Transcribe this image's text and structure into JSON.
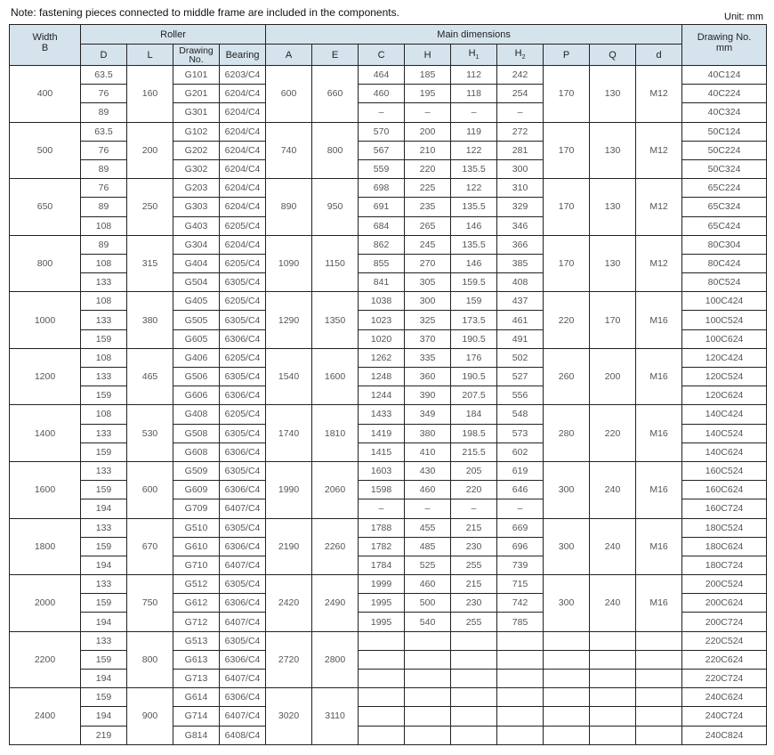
{
  "note": "Note: fastening pieces connected to middle frame are included in the components.",
  "unit": "Unit: mm",
  "header": {
    "width": "Width",
    "width_sub": "B",
    "roller": "Roller",
    "main_dimensions": "Main dimensions",
    "drawing_no": "Drawing No.",
    "drawing_no_sub": "mm",
    "D": "D",
    "L": "L",
    "drawing": "Drawing No.",
    "bearing": "Bearing",
    "A": "A",
    "E": "E",
    "C": "C",
    "H": "H",
    "H1": "H",
    "H1_sub": "1",
    "H2": "H",
    "H2_sub": "2",
    "P": "P",
    "Q": "Q",
    "d": "d"
  },
  "header_bg": "#d5e3ec",
  "groups": [
    {
      "width": "400",
      "L": "160",
      "A": "600",
      "E": "660",
      "P": "170",
      "Q": "130",
      "d": "M12",
      "rows": [
        {
          "D": "63.5",
          "drawing": "G101",
          "bearing": "6203/C4",
          "C": "464",
          "H": "185",
          "H1": "112",
          "H2": "242",
          "no": "40C124"
        },
        {
          "D": "76",
          "drawing": "G201",
          "bearing": "6204/C4",
          "C": "460",
          "H": "195",
          "H1": "118",
          "H2": "254",
          "no": "40C224"
        },
        {
          "D": "89",
          "drawing": "G301",
          "bearing": "6204/C4",
          "C": "–",
          "H": "–",
          "H1": "–",
          "H2": "–",
          "no": "40C324"
        }
      ]
    },
    {
      "width": "500",
      "L": "200",
      "A": "740",
      "E": "800",
      "P": "170",
      "Q": "130",
      "d": "M12",
      "rows": [
        {
          "D": "63.5",
          "drawing": "G102",
          "bearing": "6204/C4",
          "C": "570",
          "H": "200",
          "H1": "119",
          "H2": "272",
          "no": "50C124"
        },
        {
          "D": "76",
          "drawing": "G202",
          "bearing": "6204/C4",
          "C": "567",
          "H": "210",
          "H1": "122",
          "H2": "281",
          "no": "50C224"
        },
        {
          "D": "89",
          "drawing": "G302",
          "bearing": "6204/C4",
          "C": "559",
          "H": "220",
          "H1": "135.5",
          "H2": "300",
          "no": "50C324"
        }
      ]
    },
    {
      "width": "650",
      "L": "250",
      "A": "890",
      "E": "950",
      "P": "170",
      "Q": "130",
      "d": "M12",
      "rows": [
        {
          "D": "76",
          "drawing": "G203",
          "bearing": "6204/C4",
          "C": "698",
          "H": "225",
          "H1": "122",
          "H2": "310",
          "no": "65C224"
        },
        {
          "D": "89",
          "drawing": "G303",
          "bearing": "6204/C4",
          "C": "691",
          "H": "235",
          "H1": "135.5",
          "H2": "329",
          "no": "65C324"
        },
        {
          "D": "108",
          "drawing": "G403",
          "bearing": "6205/C4",
          "C": "684",
          "H": "265",
          "H1": "146",
          "H2": "346",
          "no": "65C424"
        }
      ]
    },
    {
      "width": "800",
      "L": "315",
      "A": "1090",
      "E": "1150",
      "P": "170",
      "Q": "130",
      "d": "M12",
      "rows": [
        {
          "D": "89",
          "drawing": "G304",
          "bearing": "6204/C4",
          "C": "862",
          "H": "245",
          "H1": "135.5",
          "H2": "366",
          "no": "80C304"
        },
        {
          "D": "108",
          "drawing": "G404",
          "bearing": "6205/C4",
          "C": "855",
          "H": "270",
          "H1": "146",
          "H2": "385",
          "no": "80C424"
        },
        {
          "D": "133",
          "drawing": "G504",
          "bearing": "6305/C4",
          "C": "841",
          "H": "305",
          "H1": "159.5",
          "H2": "408",
          "no": "80C524"
        }
      ]
    },
    {
      "width": "1000",
      "L": "380",
      "A": "1290",
      "E": "1350",
      "P": "220",
      "Q": "170",
      "d": "M16",
      "rows": [
        {
          "D": "108",
          "drawing": "G405",
          "bearing": "6205/C4",
          "C": "1038",
          "H": "300",
          "H1": "159",
          "H2": "437",
          "no": "100C424"
        },
        {
          "D": "133",
          "drawing": "G505",
          "bearing": "6305/C4",
          "C": "1023",
          "H": "325",
          "H1": "173.5",
          "H2": "461",
          "no": "100C524"
        },
        {
          "D": "159",
          "drawing": "G605",
          "bearing": "6306/C4",
          "C": "1020",
          "H": "370",
          "H1": "190.5",
          "H2": "491",
          "no": "100C624"
        }
      ]
    },
    {
      "width": "1200",
      "L": "465",
      "A": "1540",
      "E": "1600",
      "P": "260",
      "Q": "200",
      "d": "M16",
      "rows": [
        {
          "D": "108",
          "drawing": "G406",
          "bearing": "6205/C4",
          "C": "1262",
          "H": "335",
          "H1": "176",
          "H2": "502",
          "no": "120C424"
        },
        {
          "D": "133",
          "drawing": "G506",
          "bearing": "6305/C4",
          "C": "1248",
          "H": "360",
          "H1": "190.5",
          "H2": "527",
          "no": "120C524"
        },
        {
          "D": "159",
          "drawing": "G606",
          "bearing": "6306/C4",
          "C": "1244",
          "H": "390",
          "H1": "207.5",
          "H2": "556",
          "no": "120C624"
        }
      ]
    },
    {
      "width": "1400",
      "L": "530",
      "A": "1740",
      "E": "1810",
      "P": "280",
      "Q": "220",
      "d": "M16",
      "rows": [
        {
          "D": "108",
          "drawing": "G408",
          "bearing": "6205/C4",
          "C": "1433",
          "H": "349",
          "H1": "184",
          "H2": "548",
          "no": "140C424"
        },
        {
          "D": "133",
          "drawing": "G508",
          "bearing": "6305/C4",
          "C": "1419",
          "H": "380",
          "H1": "198.5",
          "H2": "573",
          "no": "140C524"
        },
        {
          "D": "159",
          "drawing": "G608",
          "bearing": "6306/C4",
          "C": "1415",
          "H": "410",
          "H1": "215.5",
          "H2": "602",
          "no": "140C624"
        }
      ]
    },
    {
      "width": "1600",
      "L": "600",
      "A": "1990",
      "E": "2060",
      "P": "300",
      "Q": "240",
      "d": "M16",
      "rows": [
        {
          "D": "133",
          "drawing": "G509",
          "bearing": "6305/C4",
          "C": "1603",
          "H": "430",
          "H1": "205",
          "H2": "619",
          "no": "160C524"
        },
        {
          "D": "159",
          "drawing": "G609",
          "bearing": "6306/C4",
          "C": "1598",
          "H": "460",
          "H1": "220",
          "H2": "646",
          "no": "160C624"
        },
        {
          "D": "194",
          "drawing": "G709",
          "bearing": "6407/C4",
          "C": "–",
          "H": "–",
          "H1": "–",
          "H2": "–",
          "no": "160C724"
        }
      ]
    },
    {
      "width": "1800",
      "L": "670",
      "A": "2190",
      "E": "2260",
      "P": "300",
      "Q": "240",
      "d": "M16",
      "rows": [
        {
          "D": "133",
          "drawing": "G510",
          "bearing": "6305/C4",
          "C": "1788",
          "H": "455",
          "H1": "215",
          "H2": "669",
          "no": "180C524"
        },
        {
          "D": "159",
          "drawing": "G610",
          "bearing": "6306/C4",
          "C": "1782",
          "H": "485",
          "H1": "230",
          "H2": "696",
          "no": "180C624"
        },
        {
          "D": "194",
          "drawing": "G710",
          "bearing": "6407/C4",
          "C": "1784",
          "H": "525",
          "H1": "255",
          "H2": "739",
          "no": "180C724"
        }
      ]
    },
    {
      "width": "2000",
      "L": "750",
      "A": "2420",
      "E": "2490",
      "P": "300",
      "Q": "240",
      "d": "M16",
      "rows": [
        {
          "D": "133",
          "drawing": "G512",
          "bearing": "6305/C4",
          "C": "1999",
          "H": "460",
          "H1": "215",
          "H2": "715",
          "no": "200C524"
        },
        {
          "D": "159",
          "drawing": "G612",
          "bearing": "6306/C4",
          "C": "1995",
          "H": "500",
          "H1": "230",
          "H2": "742",
          "no": "200C624"
        },
        {
          "D": "194",
          "drawing": "G712",
          "bearing": "6407/C4",
          "C": "1995",
          "H": "540",
          "H1": "255",
          "H2": "785",
          "no": "200C724"
        }
      ]
    },
    {
      "width": "2200",
      "L": "800",
      "A": "2720",
      "E": "2800",
      "P": null,
      "Q": null,
      "d": null,
      "rows": [
        {
          "D": "133",
          "drawing": "G513",
          "bearing": "6305/C4",
          "C": "",
          "H": "",
          "H1": "",
          "H2": "",
          "no": "220C524"
        },
        {
          "D": "159",
          "drawing": "G613",
          "bearing": "6306/C4",
          "C": "",
          "H": "",
          "H1": "",
          "H2": "",
          "no": "220C624"
        },
        {
          "D": "194",
          "drawing": "G713",
          "bearing": "6407/C4",
          "C": "",
          "H": "",
          "H1": "",
          "H2": "",
          "no": "220C724"
        }
      ]
    },
    {
      "width": "2400",
      "L": "900",
      "A": "3020",
      "E": "3110",
      "P": null,
      "Q": null,
      "d": null,
      "rows": [
        {
          "D": "159",
          "drawing": "G614",
          "bearing": "6306/C4",
          "C": "",
          "H": "",
          "H1": "",
          "H2": "",
          "no": "240C624"
        },
        {
          "D": "194",
          "drawing": "G714",
          "bearing": "6407/C4",
          "C": "",
          "H": "",
          "H1": "",
          "H2": "",
          "no": "240C724"
        },
        {
          "D": "219",
          "drawing": "G814",
          "bearing": "6408/C4",
          "C": "",
          "H": "",
          "H1": "",
          "H2": "",
          "no": "240C824"
        }
      ]
    }
  ]
}
